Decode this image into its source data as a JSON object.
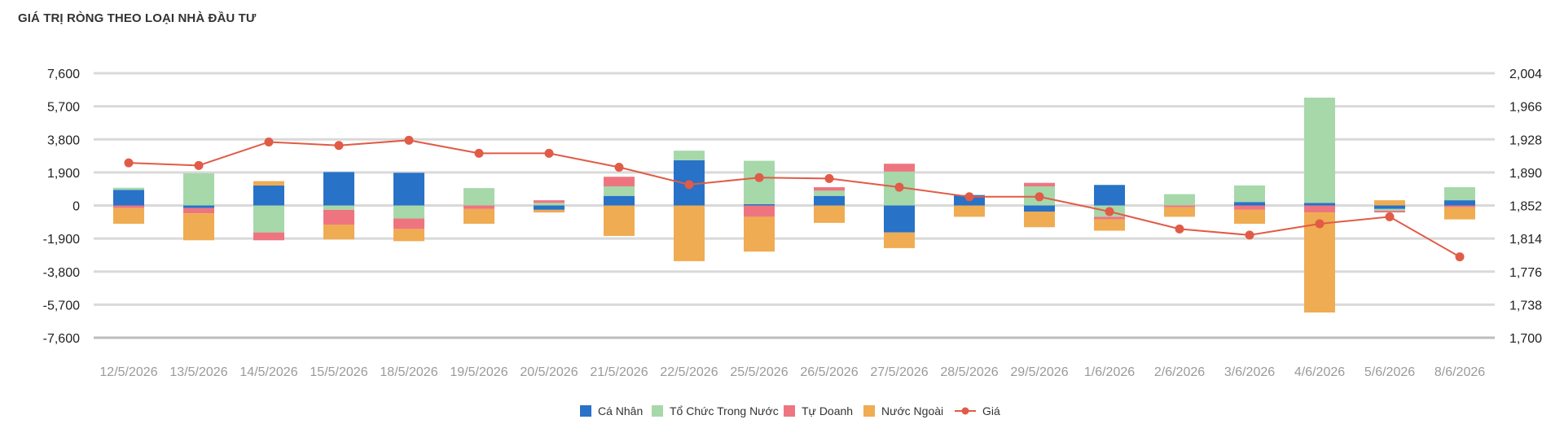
{
  "chart_data": {
    "type": "bar",
    "stacked": true,
    "title": "GIÁ TRỊ RÒNG THEO LOẠI NHÀ ĐẦU TƯ",
    "categories": [
      "12/5/2026",
      "13/5/2026",
      "14/5/2026",
      "15/5/2026",
      "18/5/2026",
      "19/5/2026",
      "20/5/2026",
      "21/5/2026",
      "22/5/2026",
      "25/5/2026",
      "26/5/2026",
      "27/5/2026",
      "28/5/2026",
      "29/5/2026",
      "1/6/2026",
      "2/6/2026",
      "3/6/2026",
      "4/6/2026",
      "5/6/2026",
      "8/6/2026"
    ],
    "y_left": {
      "ticks": [
        "7,600",
        "5,700",
        "3,800",
        "1,900",
        "0",
        "-1,900",
        "-3,800",
        "-5,700",
        "-7,600"
      ],
      "ylim": [
        -7600,
        7600
      ]
    },
    "y_right": {
      "ticks": [
        "2,004",
        "1,966",
        "1,928",
        "1,890",
        "1,852",
        "1,814",
        "1,776",
        "1,738",
        "1,700"
      ],
      "ylim": [
        1700,
        2004
      ]
    },
    "series": [
      {
        "name": "Cá Nhân",
        "color": "#2872c8",
        "values": [
          900,
          -150,
          1150,
          1920,
          1880,
          0,
          -250,
          550,
          2600,
          70,
          550,
          -1550,
          600,
          -350,
          1180,
          0,
          200,
          150,
          -200,
          300
        ]
      },
      {
        "name": "Tổ Chức Trong Nước",
        "color": "#a6d8aa",
        "values": [
          120,
          1850,
          -1550,
          -250,
          -750,
          1000,
          150,
          550,
          550,
          2500,
          300,
          1950,
          0,
          1100,
          -650,
          650,
          950,
          6050,
          -100,
          750
        ]
      },
      {
        "name": "Tự Doanh",
        "color": "#ee7580",
        "values": [
          -150,
          -300,
          -450,
          -850,
          -600,
          -200,
          150,
          550,
          0,
          -650,
          200,
          450,
          0,
          200,
          -150,
          -100,
          -250,
          -400,
          -100,
          -100
        ]
      },
      {
        "name": "Nước Ngoài",
        "color": "#efac52",
        "values": [
          -900,
          -1550,
          250,
          -850,
          -700,
          -850,
          -150,
          -1750,
          -3200,
          -2000,
          -1000,
          -900,
          -650,
          -900,
          -650,
          -550,
          -800,
          -5750,
          300,
          -700
        ]
      }
    ],
    "line": {
      "name": "Giá",
      "color": "#e15b47",
      "values": [
        1901,
        1898,
        1925,
        1921,
        1927,
        1912,
        1912,
        1896,
        1876,
        1884,
        1883,
        1873,
        1862,
        1862,
        1845,
        1825,
        1818,
        1831,
        1839,
        1793
      ]
    },
    "legend_position": "bottom",
    "grid": true
  }
}
